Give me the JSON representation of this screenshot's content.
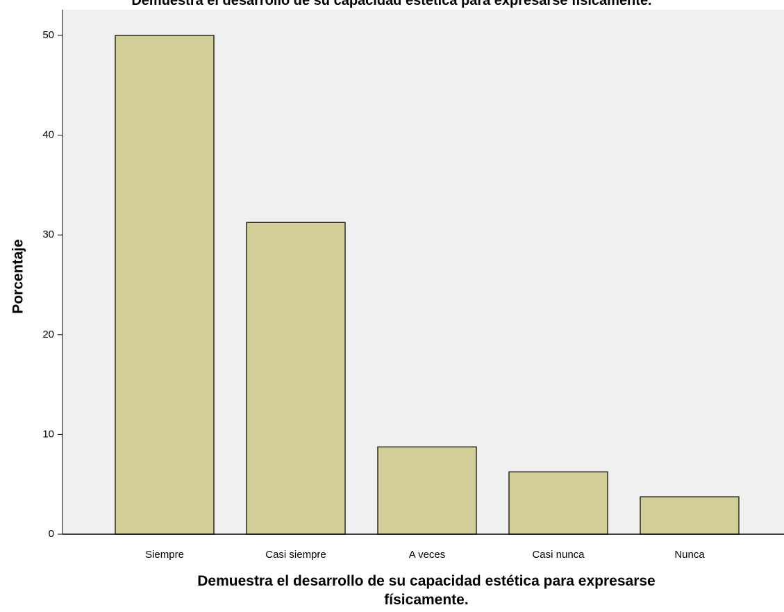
{
  "chart_data": {
    "type": "bar",
    "title": "Demuestra el desarrollo de su capacidad estética para expresarse físicamente.",
    "xlabel_lines": [
      "Demuestra el desarrollo de su capacidad estética para expresarse",
      "físicamente."
    ],
    "ylabel": "Porcentaje",
    "categories": [
      "Siempre",
      "Casi siempre",
      "A veces",
      "Casi nunca",
      "Nunca"
    ],
    "values": [
      50.0,
      31.25,
      8.75,
      6.25,
      3.75
    ],
    "ylim": [
      0,
      50
    ],
    "yticks": [
      "0",
      "10",
      "20",
      "30",
      "40",
      "50"
    ],
    "grid": false,
    "colors": {
      "plot_background": "#f0f0f0",
      "bar_fill": "#d3ce97",
      "bar_stroke": "#2b2b1f"
    }
  }
}
